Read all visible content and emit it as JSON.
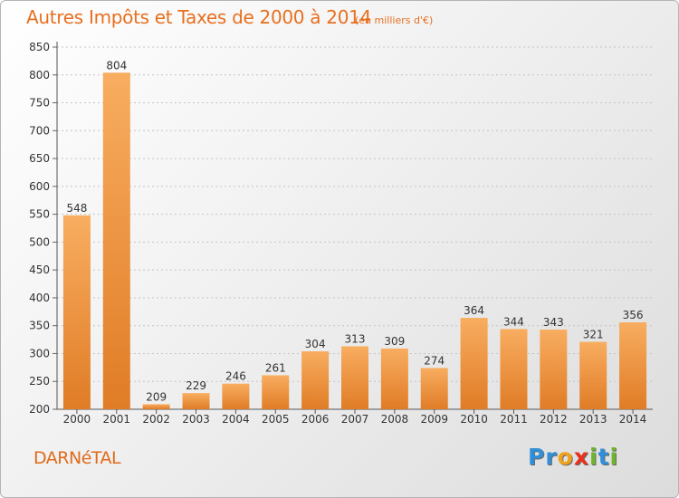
{
  "header": {
    "title": "Autres Impôts et Taxes de 2000 à 2014",
    "unit_note": "(en milliers d'€)"
  },
  "footer": {
    "city": "DARNéTAL",
    "brand": "Proxiti",
    "brand_letters": [
      {
        "ch": "P",
        "color": "#2f8fd8"
      },
      {
        "ch": "r",
        "color": "#2f8fd8"
      },
      {
        "ch": "o",
        "color": "#f0a21a"
      },
      {
        "ch": "x",
        "color": "#e8321e"
      },
      {
        "ch": "i",
        "color": "#6cb52d"
      },
      {
        "ch": "t",
        "color": "#2f8fd8"
      },
      {
        "ch": "i",
        "color": "#6cb52d"
      }
    ]
  },
  "colors": {
    "accent": "#e86f1f",
    "bar_light": "#f8ad60",
    "bar_dark": "#e07c26"
  },
  "chart_data": {
    "type": "bar",
    "title": "Autres Impôts et Taxes de 2000 à 2014",
    "subtitle": "(en milliers d'€)",
    "xlabel": "",
    "ylabel": "",
    "categories": [
      "2000",
      "2001",
      "2002",
      "2003",
      "2004",
      "2005",
      "2006",
      "2007",
      "2008",
      "2009",
      "2010",
      "2011",
      "2012",
      "2013",
      "2014"
    ],
    "values": [
      548,
      804,
      209,
      229,
      246,
      261,
      304,
      313,
      309,
      274,
      364,
      344,
      343,
      321,
      356
    ],
    "ylim": [
      200,
      850
    ],
    "yticks": [
      200,
      250,
      300,
      350,
      400,
      450,
      500,
      550,
      600,
      650,
      700,
      750,
      800,
      850
    ],
    "grid": "horizontal-dashed",
    "data_labels": true
  }
}
